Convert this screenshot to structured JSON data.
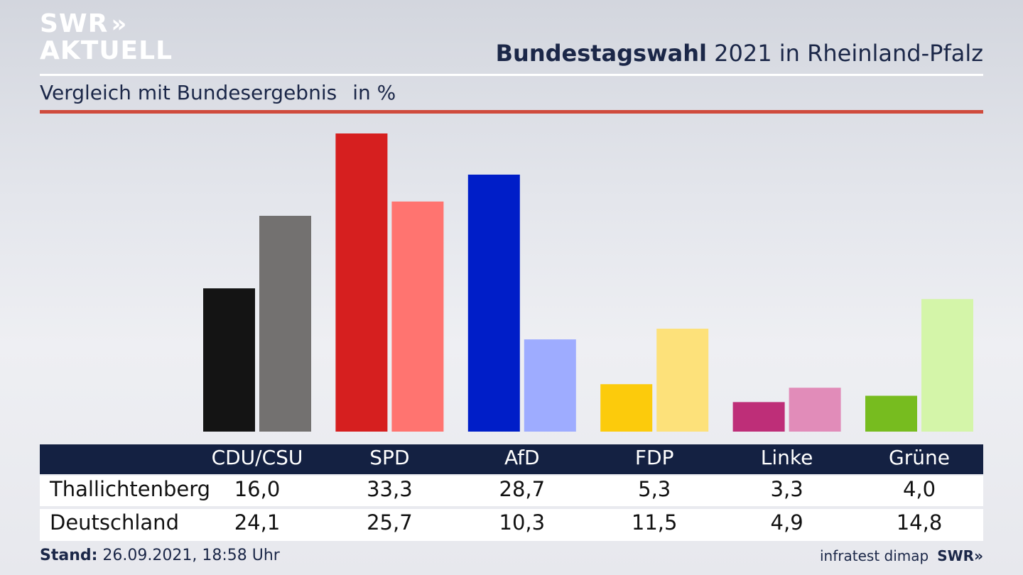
{
  "brand": {
    "line1": "SWR",
    "line2": "AKTUELL",
    "chevrons": "»"
  },
  "title": {
    "bold": "Bundestagswahl",
    "rest": "2021 in Rheinland-Pfalz"
  },
  "subtitle": {
    "text": "Vergleich mit Bundesergebnis",
    "unit": "in %"
  },
  "colors": {
    "rule_red": "#cf4b3d",
    "header_bg": "#142142",
    "text_dark": "#1b2748"
  },
  "chart_data": {
    "type": "bar",
    "categories": [
      "CDU/CSU",
      "SPD",
      "AfD",
      "FDP",
      "Linke",
      "Grüne"
    ],
    "series": [
      {
        "name": "Thallichtenberg",
        "values": [
          16.0,
          33.3,
          28.7,
          5.3,
          3.3,
          4.0
        ],
        "colors": [
          "#141414",
          "#d61f1f",
          "#001ec8",
          "#fccb0c",
          "#be2e78",
          "#77bc1f"
        ]
      },
      {
        "name": "Deutschland",
        "values": [
          24.1,
          25.7,
          10.3,
          11.5,
          4.9,
          14.8
        ],
        "colors": [
          "#737170",
          "#ff7470",
          "#9eacff",
          "#fde17a",
          "#e18cb9",
          "#d4f5a9"
        ]
      }
    ],
    "ylim": [
      0,
      33.3
    ],
    "grid": false,
    "legend": "table below chart"
  },
  "table": {
    "headers": [
      "CDU/CSU",
      "SPD",
      "AfD",
      "FDP",
      "Linke",
      "Grüne"
    ],
    "rows": [
      {
        "label": "Thallichtenberg",
        "values": [
          "16,0",
          "33,3",
          "28,7",
          "5,3",
          "3,3",
          "4,0"
        ]
      },
      {
        "label": "Deutschland",
        "values": [
          "24,1",
          "25,7",
          "10,3",
          "11,5",
          "4,9",
          "14,8"
        ]
      }
    ]
  },
  "footer": {
    "stand_label": "Stand:",
    "stand_value": "26.09.2021, 18:58 Uhr"
  },
  "source": {
    "text": "infratest dimap",
    "logo": "SWR»"
  }
}
